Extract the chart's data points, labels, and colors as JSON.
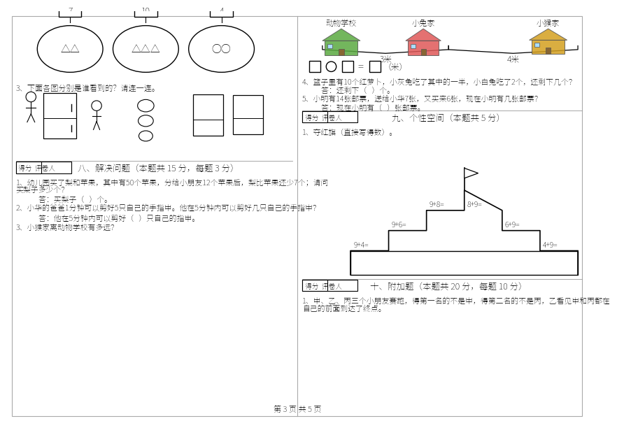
{
  "bg_color": "#ffffff",
  "page_num_text": "第 3 页 共 5 页",
  "section3_label": "3、下面各图分别是谁看到的？请连一连。",
  "section8_header": "得分  评卷人",
  "section8_title": "八、解决问题（本题共 15 分，每题 3 分）",
  "section8_q1a": "1、幼儿园买了梨和苹果，其中有50个苹果，分给小朋友12个苹果后，梨比苹果还少7个；请问",
  "section8_q1b": "买梨子多少个？",
  "section8_q1_ans": "答：买梨子（   ）个。",
  "section8_q2": "2、小华的爸爸1分钟可以剪好5只自己的手指甲。他在5分钟内可以剪好几只自己的手指甲？",
  "section8_q2_ans": "答：他在5分钟内可以剪好（   ）只自己的指甲。",
  "section8_q3": "3、小猴家离动物学校有多远？",
  "right_top_labels": [
    "动物学校",
    "小兔家",
    "小猴家"
  ],
  "right_distances": [
    "3米",
    "4米"
  ],
  "right_q3_label": "3、小猴家离动物学校有多远？",
  "right_q4": "4、篮子里有10个红萝卜，小灰兔吃了其中的一半，小白兔吃了2个，还剩下几个？",
  "right_q4_ans": "答：还剩下（   ）个。",
  "right_q5": "5、小明有14张邮票，送给小华7张，又买来6张，现在小明有几张邮票？",
  "right_q5_ans": "答：现在小明有（   ）张邮票。",
  "section9_header": "得分  评卷人",
  "section9_title": "九、个性空间（本题共 5 分）",
  "section9_q1": "1、夺红旗（直接写得数）。",
  "stair_left_labels": [
    "9+4=",
    "9+6=",
    "9+8="
  ],
  "stair_right_labels": [
    "8+9=",
    "6+9=",
    "4+9="
  ],
  "section10_header": "得分  评卷人",
  "section10_title": "十、附加题（本题共 20 分，每题 10 分）",
  "section10_q1a": "1、甲、乙、丙三个小朋友赛跑，得第一名的不是甲，得第二名的不是丙，乙看见甲和丙都在",
  "section10_q1b": "自己的前面到达了终点。",
  "circle_nums": [
    "7",
    "10",
    "4"
  ],
  "circle_symbols": [
    "△△",
    "△△△",
    "○○"
  ],
  "house_colors": [
    "#5aaa40",
    "#e05858",
    "#d4a020"
  ],
  "house_label_colors": [
    "#000000",
    "#000000",
    "#000000"
  ]
}
